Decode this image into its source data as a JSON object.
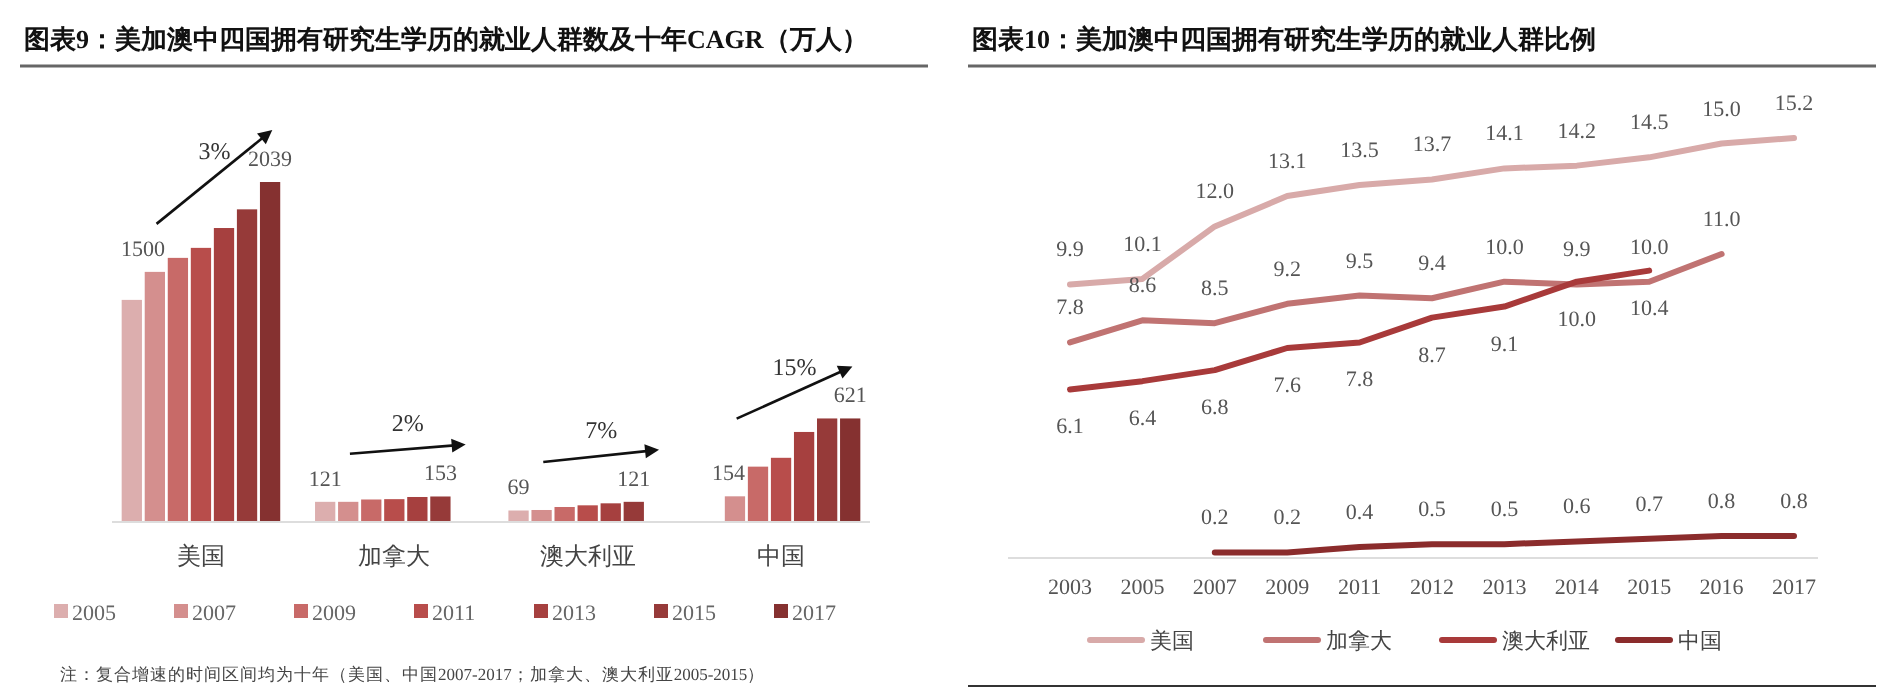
{
  "chart_data": [
    {
      "type": "bar",
      "title": "图表9：美加澳中四国拥有研究生学历的就业人群数及十年CAGR（万人）",
      "categories": [
        "美国",
        "加拿大",
        "澳大利亚",
        "中国"
      ],
      "tick_labels": "x",
      "legend": "bottom",
      "series": [
        {
          "name": "2005",
          "color": "#dcaeae",
          "values": [
            1332,
            121,
            69,
            null
          ],
          "value_labels": [
            null,
            "121",
            "69",
            null
          ]
        },
        {
          "name": "2007",
          "color": "#d48f8e",
          "values": [
            1500,
            121,
            72,
            154
          ],
          "value_labels": [
            "1500",
            null,
            null,
            "154"
          ]
        },
        {
          "name": "2009",
          "color": "#c86a68",
          "values": [
            1584,
            135,
            90,
            332
          ],
          "value_labels": [
            null,
            null,
            null,
            null
          ]
        },
        {
          "name": "2011",
          "color": "#b84d4b",
          "values": [
            1644,
            137,
            100,
            385
          ],
          "value_labels": [
            null,
            null,
            null,
            null
          ]
        },
        {
          "name": "2013",
          "color": "#a6403f",
          "values": [
            1763,
            150,
            112,
            540
          ],
          "value_labels": [
            null,
            null,
            null,
            null
          ]
        },
        {
          "name": "2015",
          "color": "#963a39",
          "values": [
            1875,
            153,
            121,
            621
          ],
          "value_labels": [
            null,
            "153",
            "121",
            null
          ]
        },
        {
          "name": "2017",
          "color": "#853130",
          "values": [
            2039,
            null,
            null,
            621
          ],
          "value_labels": [
            "2039",
            null,
            null,
            "621"
          ]
        }
      ],
      "annotations": [
        "3%",
        "2%",
        "7%",
        "15%",
        "注：复合增速的时间区间均为十年（美国、中国2007-2017；加拿大、澳大利亚2005-2015）"
      ]
    },
    {
      "type": "line",
      "title": "图表10：美加澳中四国拥有研究生学历的就业人群比例",
      "categories": [
        "2003",
        "2005",
        "2007",
        "2009",
        "2011",
        "2012",
        "2013",
        "2014",
        "2015",
        "2016",
        "2017"
      ],
      "tick_labels": "x",
      "legend": "bottom",
      "marker": "none",
      "line_style": "solid",
      "series": [
        {
          "name": "美国",
          "color": "#d8aaa9",
          "values": [
            9.9,
            10.1,
            12.0,
            13.1,
            13.5,
            13.7,
            14.1,
            14.2,
            14.5,
            15.0,
            15.2
          ],
          "value_labels": [
            "9.9",
            "10.1",
            "12.0",
            "13.1",
            "13.5",
            "13.7",
            "14.1",
            "14.2",
            "14.5",
            "15.0",
            "15.2"
          ]
        },
        {
          "name": "加拿大",
          "color": "#c07372",
          "values": [
            7.8,
            8.6,
            8.5,
            9.2,
            9.5,
            9.4,
            10.0,
            9.9,
            10.0,
            11.0,
            null
          ],
          "value_labels": [
            "7.8",
            "8.6",
            "8.5",
            "9.2",
            "9.5",
            "9.4",
            "10.0",
            "9.9",
            "10.0",
            "11.0",
            null
          ]
        },
        {
          "name": "澳大利亚",
          "color": "#a83a3a",
          "values": [
            6.1,
            6.4,
            6.8,
            7.6,
            7.8,
            8.7,
            9.1,
            10.0,
            10.4,
            null,
            null
          ],
          "value_labels": [
            "6.1",
            "6.4",
            "6.8",
            "7.6",
            "7.8",
            "8.7",
            "9.1",
            "10.0",
            "10.4",
            null,
            null
          ]
        },
        {
          "name": "中国",
          "color": "#8b2c2c",
          "values": [
            null,
            null,
            0.2,
            0.2,
            0.4,
            0.5,
            0.5,
            0.6,
            0.7,
            0.8,
            0.8
          ],
          "value_labels": [
            null,
            null,
            "0.2",
            "0.2",
            "0.4",
            "0.5",
            "0.5",
            "0.6",
            "0.7",
            "0.8",
            "0.8"
          ]
        }
      ]
    }
  ]
}
